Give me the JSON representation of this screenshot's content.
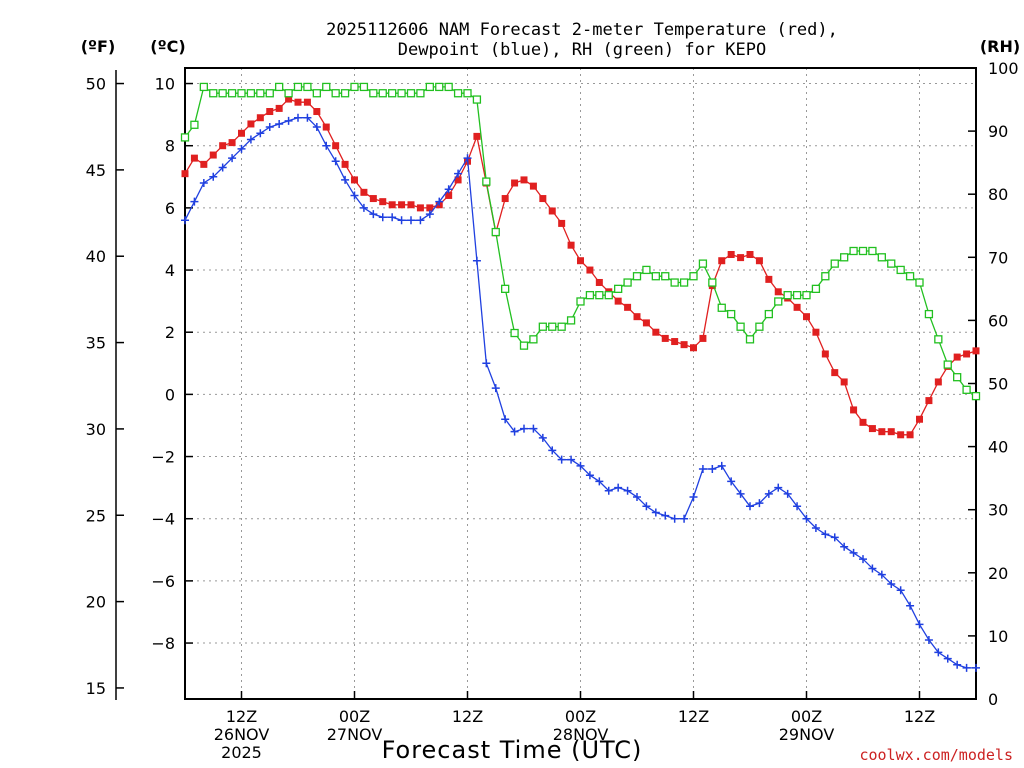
{
  "colors": {
    "temperature": "#e02020",
    "dewpoint": "#2040e0",
    "rh": "#22c020",
    "credit": "#cc2222"
  },
  "chart_data": {
    "type": "line",
    "title_line1": "2025112606 NAM Forecast 2-meter Temperature (red),",
    "title_line2": "Dewpoint (blue), RH (green) for KEPO",
    "xlabel": "Forecast Time (UTC)",
    "credit": "coolwx.com/models",
    "units": {
      "fahrenheit": "(ºF)",
      "celsius": "(ºC)",
      "rh": "(RH)"
    },
    "x_range_hours": [
      0,
      84
    ],
    "celsius_ticks": [
      "10",
      "8",
      "6",
      "4",
      "2",
      "0",
      "−2",
      "−4",
      "−6",
      "−8"
    ],
    "fahrenheit_ticks": [
      "50",
      "45",
      "40",
      "35",
      "30",
      "25",
      "20",
      "15"
    ],
    "rh_ticks": [
      "100",
      "90",
      "80",
      "70",
      "60",
      "50",
      "40",
      "30",
      "20",
      "10",
      "0"
    ],
    "ylim_celsius": [
      -9.8,
      10.5
    ],
    "ylim_rh": [
      0,
      100
    ],
    "x_tick_labels": [
      {
        "hour": 6,
        "l1": "12Z",
        "l2": "26NOV",
        "l3": "2025"
      },
      {
        "hour": 18,
        "l1": "00Z",
        "l2": "27NOV",
        "l3": ""
      },
      {
        "hour": 30,
        "l1": "12Z",
        "l2": "",
        "l3": ""
      },
      {
        "hour": 42,
        "l1": "00Z",
        "l2": "28NOV",
        "l3": ""
      },
      {
        "hour": 54,
        "l1": "12Z",
        "l2": "",
        "l3": ""
      },
      {
        "hour": 66,
        "l1": "00Z",
        "l2": "29NOV",
        "l3": ""
      },
      {
        "hour": 78,
        "l1": "12Z",
        "l2": "",
        "l3": ""
      }
    ],
    "series": [
      {
        "name": "Temperature (°C)",
        "marker": "square-filled",
        "values": [
          7.1,
          7.6,
          7.4,
          7.7,
          8.0,
          8.1,
          8.4,
          8.7,
          8.9,
          9.1,
          9.2,
          9.5,
          9.4,
          9.4,
          9.1,
          8.6,
          8.0,
          7.4,
          6.9,
          6.5,
          6.3,
          6.2,
          6.1,
          6.1,
          6.1,
          6.0,
          6.0,
          6.1,
          6.4,
          6.9,
          7.5,
          8.3,
          6.8,
          5.2,
          6.3,
          6.8,
          6.9,
          6.7,
          6.3,
          5.9,
          5.5,
          4.8,
          4.3,
          4.0,
          3.6,
          3.3,
          3.0,
          2.8,
          2.5,
          2.3,
          2.0,
          1.8,
          1.7,
          1.6,
          1.5,
          1.8,
          3.5,
          4.3,
          4.5,
          4.4,
          4.5,
          4.3,
          3.7,
          3.3,
          3.1,
          2.8,
          2.5,
          2.0,
          1.3,
          0.7,
          0.4,
          -0.5,
          -0.9,
          -1.1,
          -1.2,
          -1.2,
          -1.3,
          -1.3,
          -0.8,
          -0.2,
          0.4,
          0.9,
          1.2,
          1.3,
          1.4
        ]
      },
      {
        "name": "Dewpoint (°C)",
        "marker": "plus",
        "values": [
          5.6,
          6.2,
          6.8,
          7.0,
          7.3,
          7.6,
          7.9,
          8.2,
          8.4,
          8.6,
          8.7,
          8.8,
          8.9,
          8.9,
          8.6,
          8.0,
          7.5,
          6.9,
          6.4,
          6.0,
          5.8,
          5.7,
          5.7,
          5.6,
          5.6,
          5.6,
          5.8,
          6.2,
          6.6,
          7.1,
          7.6,
          4.3,
          1.0,
          0.2,
          -0.8,
          -1.2,
          -1.1,
          -1.1,
          -1.4,
          -1.8,
          -2.1,
          -2.1,
          -2.3,
          -2.6,
          -2.8,
          -3.1,
          -3.0,
          -3.1,
          -3.3,
          -3.6,
          -3.8,
          -3.9,
          -4.0,
          -4.0,
          -3.3,
          -2.4,
          -2.4,
          -2.3,
          -2.8,
          -3.2,
          -3.6,
          -3.5,
          -3.2,
          -3.0,
          -3.2,
          -3.6,
          -4.0,
          -4.3,
          -4.5,
          -4.6,
          -4.9,
          -5.1,
          -5.3,
          -5.6,
          -5.8,
          -6.1,
          -6.3,
          -6.8,
          -7.4,
          -7.9,
          -8.3,
          -8.5,
          -8.7,
          -8.8,
          -8.8
        ]
      },
      {
        "name": "RH (%)",
        "marker": "square-open",
        "values": [
          89,
          91,
          97,
          96,
          96,
          96,
          96,
          96,
          96,
          96,
          97,
          96,
          97,
          97,
          96,
          97,
          96,
          96,
          97,
          97,
          96,
          96,
          96,
          96,
          96,
          96,
          97,
          97,
          97,
          96,
          96,
          95,
          82,
          74,
          65,
          58,
          56,
          57,
          59,
          59,
          59,
          60,
          63,
          64,
          64,
          64,
          65,
          66,
          67,
          68,
          67,
          67,
          66,
          66,
          67,
          69,
          66,
          62,
          61,
          59,
          57,
          59,
          61,
          63,
          64,
          64,
          64,
          65,
          67,
          69,
          70,
          71,
          71,
          71,
          70,
          69,
          68,
          67,
          66,
          61,
          57,
          53,
          51,
          49,
          48
        ]
      }
    ]
  }
}
